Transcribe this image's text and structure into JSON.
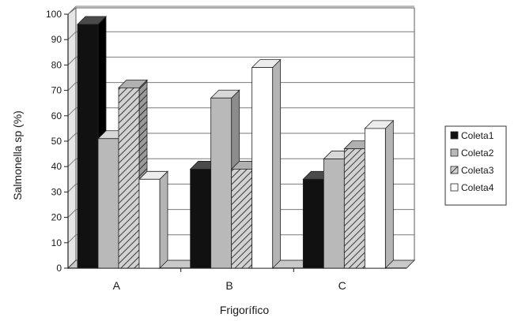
{
  "chart_data": {
    "type": "bar",
    "title": "",
    "xlabel": "Frigorífico",
    "ylabel": "Salmonella sp (%)",
    "categories": [
      "A",
      "B",
      "C"
    ],
    "ylim": [
      0,
      100
    ],
    "yticks": [
      0,
      10,
      20,
      30,
      40,
      50,
      60,
      70,
      80,
      90,
      100
    ],
    "grid": true,
    "legend_position": "right",
    "three_d": true,
    "series": [
      {
        "name": "Coleta1",
        "values": [
          96,
          39,
          35
        ],
        "fill": "solid-black"
      },
      {
        "name": "Coleta2",
        "values": [
          51,
          67,
          43
        ],
        "fill": "solid-gray"
      },
      {
        "name": "Coleta3",
        "values": [
          71,
          39,
          47
        ],
        "fill": "diagonal-hatch"
      },
      {
        "name": "Coleta4",
        "values": [
          35,
          79,
          55
        ],
        "fill": "solid-white"
      }
    ],
    "colors": {
      "Coleta1": "#111111",
      "Coleta2": "#b9b9b9",
      "Coleta3": "#d2d2d2",
      "Coleta4": "#ffffff",
      "wall": "#ffffff",
      "floor": "#c8c8c8",
      "grid": "#7a7a7a"
    }
  }
}
